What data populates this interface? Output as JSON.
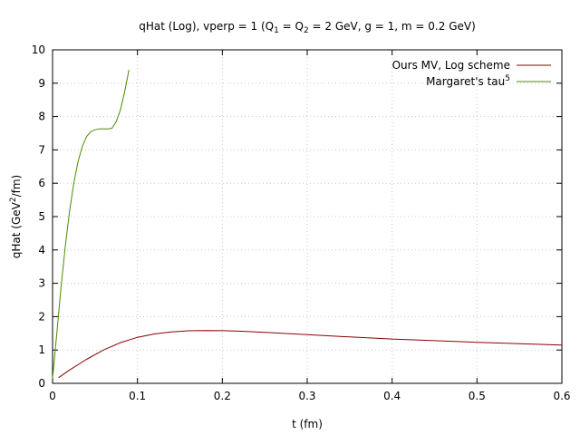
{
  "chart_data": {
    "type": "line",
    "title": {
      "prefix": "qHat (Log), vperp = 1 (Q",
      "sub1": "1",
      "mid": " = Q",
      "sub2": "2",
      "suffix": " = 2 GeV, g = 1, m = 0.2 GeV)"
    },
    "xlabel": "t (fm)",
    "ylabel": {
      "prefix": "qHat (GeV",
      "sup": "2",
      "suffix": "/fm)"
    },
    "xlim": [
      0,
      0.6
    ],
    "ylim": [
      0,
      10
    ],
    "x_ticks": [
      {
        "value": 0,
        "label": "0"
      },
      {
        "value": 0.1,
        "label": "0.1"
      },
      {
        "value": 0.2,
        "label": "0.2"
      },
      {
        "value": 0.3,
        "label": "0.3"
      },
      {
        "value": 0.4,
        "label": "0.4"
      },
      {
        "value": 0.5,
        "label": "0.5"
      },
      {
        "value": 0.6,
        "label": "0.6"
      }
    ],
    "y_ticks": [
      {
        "value": 0,
        "label": "0"
      },
      {
        "value": 1,
        "label": "1"
      },
      {
        "value": 2,
        "label": "2"
      },
      {
        "value": 3,
        "label": "3"
      },
      {
        "value": 4,
        "label": "4"
      },
      {
        "value": 5,
        "label": "5"
      },
      {
        "value": 6,
        "label": "6"
      },
      {
        "value": 7,
        "label": "7"
      },
      {
        "value": 8,
        "label": "8"
      },
      {
        "value": 9,
        "label": "9"
      },
      {
        "value": 10,
        "label": "10"
      }
    ],
    "grid": true,
    "legend_position": "top-right",
    "series": [
      {
        "name": "Ours MV, Log scheme",
        "color": "#8b0000",
        "x": [
          0.007,
          0.02,
          0.04,
          0.06,
          0.08,
          0.1,
          0.12,
          0.14,
          0.16,
          0.18,
          0.2,
          0.22,
          0.25,
          0.3,
          0.35,
          0.4,
          0.45,
          0.5,
          0.55,
          0.6
        ],
        "y": [
          0.17,
          0.4,
          0.72,
          1.0,
          1.22,
          1.38,
          1.48,
          1.54,
          1.575,
          1.585,
          1.58,
          1.565,
          1.53,
          1.46,
          1.39,
          1.33,
          1.28,
          1.23,
          1.19,
          1.15
        ]
      },
      {
        "name": {
          "prefix": "Margaret's tau",
          "sup": "5"
        },
        "color": "#4b8b00",
        "x": [
          0.0,
          0.005,
          0.01,
          0.015,
          0.02,
          0.025,
          0.03,
          0.035,
          0.04,
          0.045,
          0.05,
          0.055,
          0.06,
          0.065,
          0.07,
          0.075,
          0.08,
          0.085,
          0.09
        ],
        "y": [
          0.15,
          1.5,
          2.9,
          4.1,
          5.15,
          6.0,
          6.65,
          7.1,
          7.4,
          7.55,
          7.6,
          7.63,
          7.63,
          7.63,
          7.65,
          7.85,
          8.2,
          8.75,
          9.4
        ]
      }
    ]
  }
}
